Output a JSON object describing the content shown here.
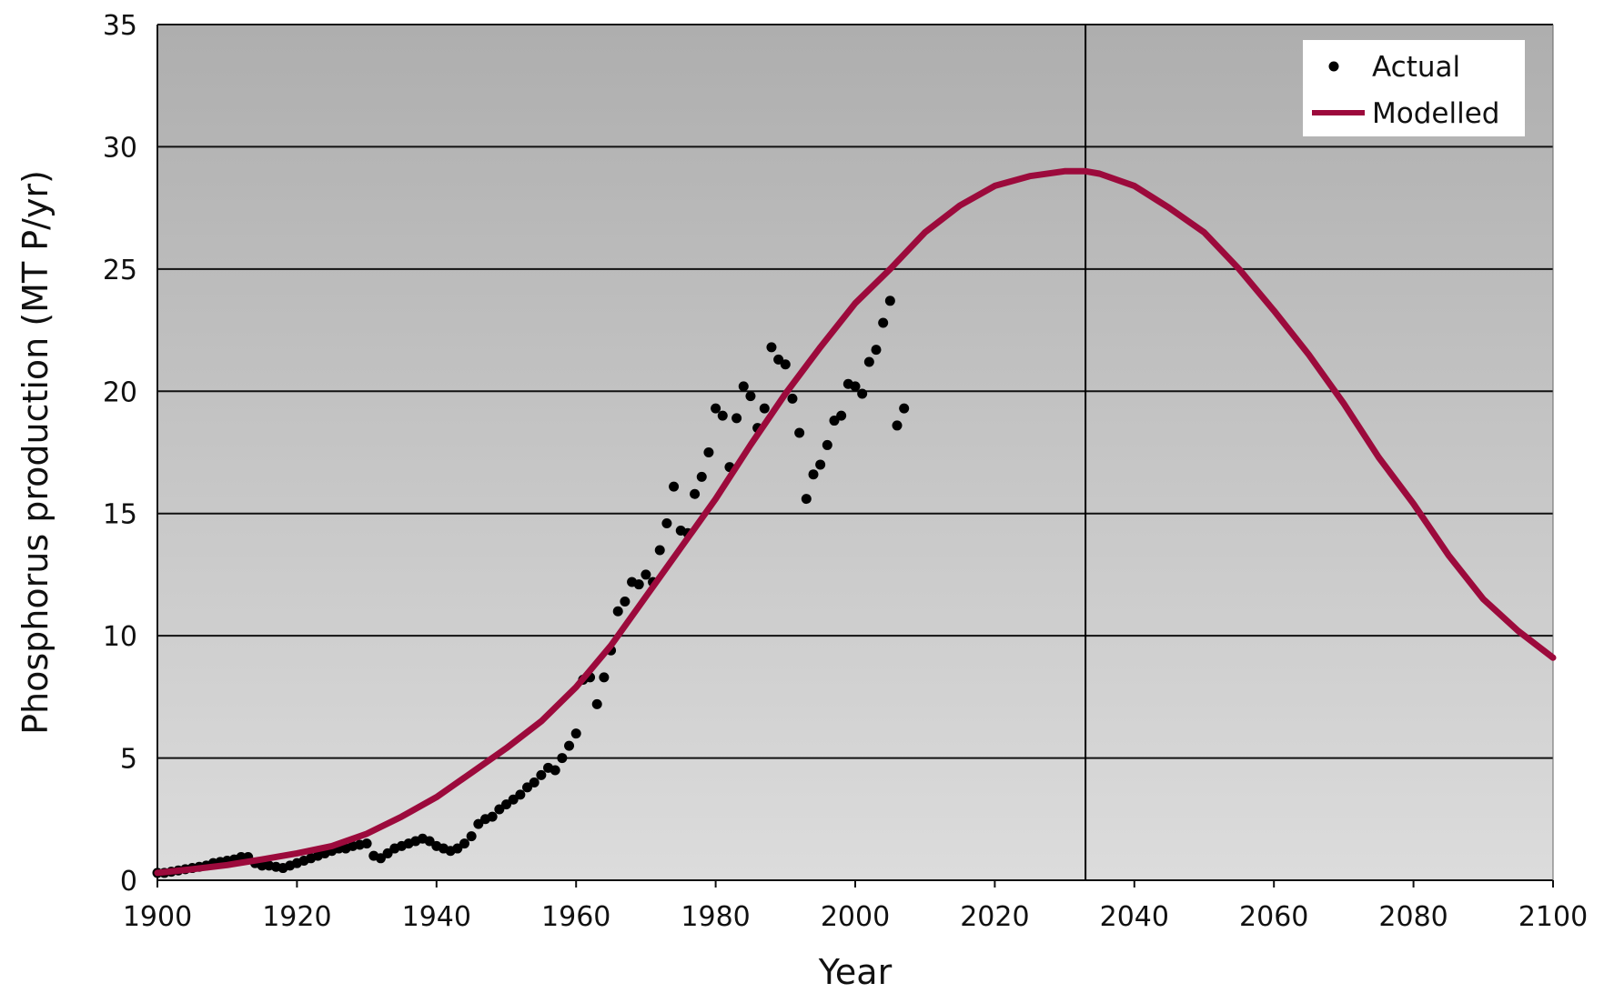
{
  "chart_data": {
    "type": "line",
    "title": "",
    "xlabel": "Year",
    "ylabel": "Phosphorus production (MT P/yr)",
    "xlim": [
      1900,
      2100
    ],
    "ylim": [
      0,
      35
    ],
    "x_ticks": [
      "1900",
      "1920",
      "1940",
      "1960",
      "1980",
      "2000",
      "2020",
      "2040",
      "2060",
      "2080",
      "2100"
    ],
    "y_ticks": [
      "0",
      "5",
      "10",
      "15",
      "20",
      "25",
      "30",
      "35"
    ],
    "grid": "horizontal",
    "reference_line_x": 2033,
    "legend_position": "top-right",
    "colors": {
      "modelled": "#9c0a3c",
      "actual": "#000000",
      "plot_top": "#aeaeae",
      "plot_bottom": "#dcdcdc"
    },
    "series": [
      {
        "name": "Actual",
        "style": "scatter",
        "x": [
          1900,
          1901,
          1902,
          1903,
          1904,
          1905,
          1906,
          1907,
          1908,
          1909,
          1910,
          1911,
          1912,
          1913,
          1914,
          1915,
          1916,
          1917,
          1918,
          1919,
          1920,
          1921,
          1922,
          1923,
          1924,
          1925,
          1926,
          1927,
          1928,
          1929,
          1930,
          1931,
          1932,
          1933,
          1934,
          1935,
          1936,
          1937,
          1938,
          1939,
          1940,
          1941,
          1942,
          1943,
          1944,
          1945,
          1946,
          1947,
          1948,
          1949,
          1950,
          1951,
          1952,
          1953,
          1954,
          1955,
          1956,
          1957,
          1958,
          1959,
          1960,
          1961,
          1962,
          1963,
          1964,
          1965,
          1966,
          1967,
          1968,
          1969,
          1970,
          1971,
          1972,
          1973,
          1974,
          1975,
          1976,
          1977,
          1978,
          1979,
          1980,
          1981,
          1982,
          1983,
          1984,
          1985,
          1986,
          1987,
          1988,
          1989,
          1990,
          1991,
          1992,
          1993,
          1994,
          1995,
          1996,
          1997,
          1998,
          1999,
          2000,
          2001,
          2002,
          2003,
          2004,
          2005,
          2006,
          2007
        ],
        "y": [
          0.3,
          0.3,
          0.35,
          0.4,
          0.45,
          0.5,
          0.55,
          0.6,
          0.7,
          0.75,
          0.8,
          0.85,
          0.95,
          0.95,
          0.7,
          0.6,
          0.6,
          0.55,
          0.5,
          0.6,
          0.7,
          0.8,
          0.9,
          1.0,
          1.1,
          1.2,
          1.3,
          1.3,
          1.4,
          1.45,
          1.5,
          1.0,
          0.9,
          1.1,
          1.3,
          1.4,
          1.5,
          1.6,
          1.7,
          1.6,
          1.4,
          1.3,
          1.2,
          1.3,
          1.5,
          1.8,
          2.3,
          2.5,
          2.6,
          2.9,
          3.1,
          3.3,
          3.5,
          3.8,
          4.0,
          4.3,
          4.6,
          4.5,
          5.0,
          5.5,
          6.0,
          8.2,
          8.3,
          7.2,
          8.3,
          9.4,
          11.0,
          11.4,
          12.2,
          12.1,
          12.5,
          12.2,
          13.5,
          14.6,
          16.1,
          14.3,
          14.2,
          15.8,
          16.5,
          17.5,
          19.3,
          19.0,
          16.9,
          18.9,
          20.2,
          19.8,
          18.5,
          19.3,
          21.8,
          21.3,
          21.1,
          19.7,
          18.3,
          15.6,
          16.6,
          17.0,
          17.8,
          18.8,
          19.0,
          20.3,
          20.2,
          19.9,
          21.2,
          21.7,
          22.8,
          23.7,
          18.6,
          19.3
        ]
      },
      {
        "name": "Modelled",
        "style": "line",
        "x": [
          1900,
          1905,
          1910,
          1915,
          1920,
          1925,
          1930,
          1935,
          1940,
          1945,
          1950,
          1955,
          1960,
          1965,
          1970,
          1975,
          1980,
          1985,
          1990,
          1995,
          2000,
          2005,
          2010,
          2015,
          2020,
          2025,
          2030,
          2033,
          2035,
          2040,
          2045,
          2050,
          2055,
          2060,
          2065,
          2070,
          2075,
          2080,
          2085,
          2090,
          2095,
          2100
        ],
        "y": [
          0.3,
          0.45,
          0.62,
          0.85,
          1.1,
          1.4,
          1.9,
          2.6,
          3.4,
          4.4,
          5.4,
          6.5,
          7.9,
          9.6,
          11.6,
          13.6,
          15.6,
          17.8,
          19.9,
          21.8,
          23.6,
          25.0,
          26.5,
          27.6,
          28.4,
          28.8,
          29.0,
          29.0,
          28.9,
          28.4,
          27.5,
          26.5,
          25.0,
          23.3,
          21.5,
          19.5,
          17.3,
          15.4,
          13.3,
          11.5,
          10.2,
          9.1
        ]
      }
    ]
  }
}
